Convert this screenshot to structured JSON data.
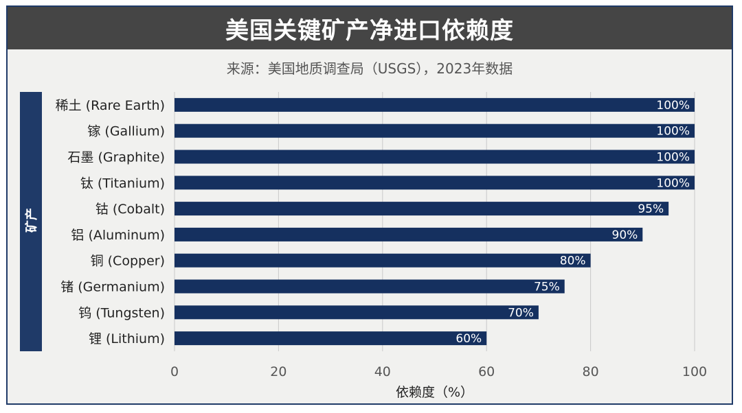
{
  "title": "美国关键矿产净进口依赖度",
  "subtitle": "来源：美国地质调查局（USGS），2023年数据",
  "colors": {
    "bar": "#15305f",
    "title_bg": "#454545",
    "panel_bg": "#f1f1ef",
    "axis_band": "#1f3a68",
    "grid": "#c9c9c9"
  },
  "chart_data": {
    "type": "bar",
    "orientation": "horizontal",
    "title": "美国关键矿产净进口依赖度",
    "subtitle": "来源：美国地质调查局（USGS），2023年数据",
    "xlabel": "依赖度（%）",
    "ylabel": "矿产",
    "xlim": [
      0,
      100
    ],
    "xticks": [
      "0",
      "20",
      "40",
      "60",
      "80",
      "100"
    ],
    "grid": true,
    "categories": [
      "稀土 (Rare Earth)",
      "镓 (Gallium)",
      "石墨 (Graphite)",
      "钛 (Titanium)",
      "钴 (Cobalt)",
      "铝 (Aluminum)",
      "铜 (Copper)",
      "锗 (Germanium)",
      "钨 (Tungsten)",
      "锂 (Lithium)"
    ],
    "values": [
      100,
      100,
      100,
      100,
      95,
      90,
      80,
      75,
      70,
      60
    ],
    "data_labels": [
      "100%",
      "100%",
      "100%",
      "100%",
      "95%",
      "90%",
      "80%",
      "75%",
      "70%",
      "60%"
    ]
  }
}
